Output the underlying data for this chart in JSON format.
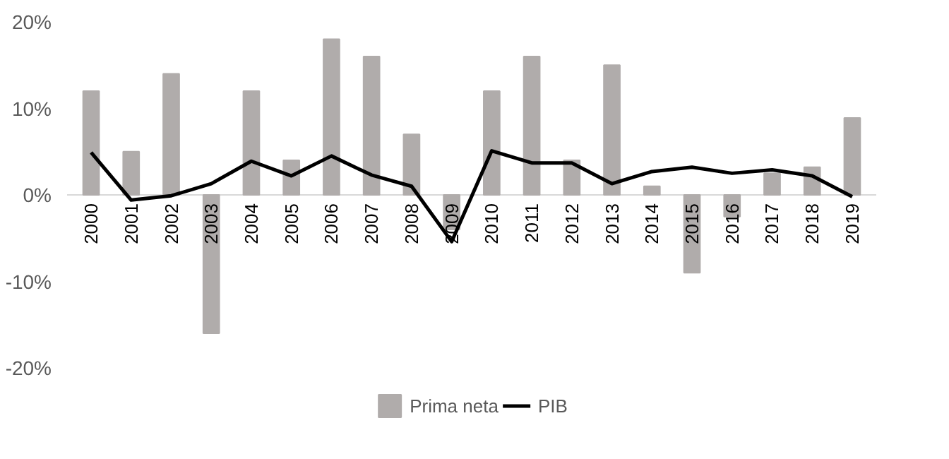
{
  "chart_data": {
    "type": "bar",
    "categories": [
      "2000",
      "2001",
      "2002",
      "2003",
      "2004",
      "2005",
      "2006",
      "2007",
      "2008",
      "2009",
      "2010",
      "2011",
      "2012",
      "2013",
      "2014",
      "2015",
      "2016",
      "2017",
      "2018",
      "2019"
    ],
    "series": [
      {
        "name": "Prima neta",
        "color": "#b0acab",
        "values": [
          12,
          5,
          14,
          -16,
          12,
          4,
          18,
          16,
          7,
          -4,
          12,
          16,
          4,
          15,
          1,
          -9,
          -2.5,
          2.5,
          3.2,
          8.9
        ]
      },
      {
        "name": "PIB",
        "type": "line",
        "color": "#000000",
        "values": [
          4.9,
          -0.6,
          -0.1,
          1.3,
          3.9,
          2.2,
          4.5,
          2.3,
          1.0,
          -5.4,
          5.1,
          3.7,
          3.7,
          1.3,
          2.7,
          3.2,
          2.5,
          2.9,
          2.2,
          -0.2
        ]
      }
    ],
    "ylim": [
      -20,
      20
    ],
    "yticks": [
      {
        "value": -20,
        "label": "-20%"
      },
      {
        "value": -10,
        "label": "-10%"
      },
      {
        "value": 0,
        "label": "0%"
      },
      {
        "value": 10,
        "label": "10%"
      },
      {
        "value": 20,
        "label": "20%"
      }
    ],
    "grid": false,
    "legend": "bottom",
    "marker": "none",
    "line_style": "solid"
  }
}
